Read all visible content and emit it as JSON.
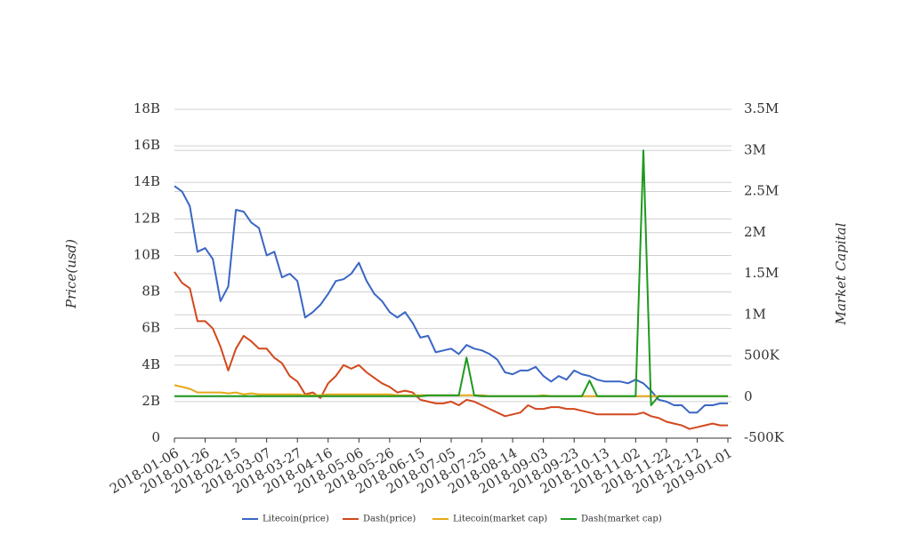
{
  "chart_data": {
    "type": "line",
    "y_label": "Price(usd)",
    "y2_label": "Market Capital",
    "x": [
      "2018-01-06",
      "2018-01-11",
      "2018-01-16",
      "2018-01-21",
      "2018-01-26",
      "2018-01-31",
      "2018-02-05",
      "2018-02-10",
      "2018-02-15",
      "2018-02-20",
      "2018-02-25",
      "2018-03-02",
      "2018-03-07",
      "2018-03-12",
      "2018-03-17",
      "2018-03-22",
      "2018-03-27",
      "2018-04-01",
      "2018-04-06",
      "2018-04-11",
      "2018-04-16",
      "2018-04-21",
      "2018-04-26",
      "2018-05-01",
      "2018-05-06",
      "2018-05-11",
      "2018-05-16",
      "2018-05-21",
      "2018-05-26",
      "2018-05-31",
      "2018-06-05",
      "2018-06-10",
      "2018-06-15",
      "2018-06-20",
      "2018-06-25",
      "2018-06-30",
      "2018-07-05",
      "2018-07-10",
      "2018-07-15",
      "2018-07-20",
      "2018-07-25",
      "2018-07-30",
      "2018-08-04",
      "2018-08-09",
      "2018-08-14",
      "2018-08-19",
      "2018-08-24",
      "2018-08-29",
      "2018-09-03",
      "2018-09-08",
      "2018-09-13",
      "2018-09-18",
      "2018-09-23",
      "2018-09-28",
      "2018-10-03",
      "2018-10-08",
      "2018-10-13",
      "2018-10-18",
      "2018-10-23",
      "2018-10-28",
      "2018-11-02",
      "2018-11-07",
      "2018-11-12",
      "2018-11-17",
      "2018-11-22",
      "2018-11-27",
      "2018-12-02",
      "2018-12-07",
      "2018-12-12",
      "2018-12-17",
      "2018-12-22",
      "2018-12-27",
      "2019-01-01"
    ],
    "xlim": [
      "2018-01-06",
      "2019-01-01"
    ],
    "xticks": [
      "2018-01-06",
      "2018-01-26",
      "2018-02-15",
      "2018-03-07",
      "2018-03-27",
      "2018-04-16",
      "2018-05-06",
      "2018-05-26",
      "2018-06-15",
      "2018-07-05",
      "2018-07-25",
      "2018-08-14",
      "2018-09-03",
      "2018-09-23",
      "2018-10-13",
      "2018-11-02",
      "2018-11-22",
      "2018-12-12",
      "2019-01-01"
    ],
    "ylim": [
      0,
      18000000000.0
    ],
    "yticks": [
      0,
      {
        "value": 2000000000.0,
        "label": "2B"
      },
      {
        "value": 4000000000.0,
        "label": "4B"
      },
      {
        "value": 6000000000.0,
        "label": "6B"
      },
      {
        "value": 8000000000.0,
        "label": "8B"
      },
      {
        "value": 10000000000.0,
        "label": "10B"
      },
      {
        "value": 12000000000.0,
        "label": "12B"
      },
      {
        "value": 14000000000.0,
        "label": "14B"
      },
      {
        "value": 16000000000.0,
        "label": "16B"
      },
      {
        "value": 18000000000.0,
        "label": "18B"
      }
    ],
    "y2lim": [
      -500000,
      3500000
    ],
    "y2ticks": [
      {
        "value": -500000,
        "label": "-500K"
      },
      0,
      {
        "value": 500000,
        "label": "500K"
      },
      {
        "value": 1000000,
        "label": "1M"
      },
      {
        "value": 1500000,
        "label": "1.5M"
      },
      {
        "value": 2000000,
        "label": "2M"
      },
      {
        "value": 2500000,
        "label": "2.5M"
      },
      {
        "value": 3000000,
        "label": "3M"
      },
      {
        "value": 3500000,
        "label": "3.5M"
      }
    ],
    "grid": true,
    "legend": "bottom",
    "series": [
      {
        "name": "Litecoin(price)",
        "color": "#3a66c4",
        "axis": "y",
        "values": [
          13800000000.0,
          13500000000.0,
          12700000000.0,
          10200000000.0,
          10400000000.0,
          9800000000.0,
          7500000000.0,
          8300000000.0,
          12500000000.0,
          12400000000.0,
          11800000000.0,
          11500000000.0,
          10000000000.0,
          10200000000.0,
          8800000000.0,
          9000000000.0,
          8600000000.0,
          6600000000.0,
          6900000000.0,
          7300000000.0,
          7900000000.0,
          8600000000.0,
          8700000000.0,
          9000000000.0,
          9600000000.0,
          8600000000.0,
          7900000000.0,
          7500000000.0,
          6900000000.0,
          6600000000.0,
          6900000000.0,
          6300000000.0,
          5500000000.0,
          5600000000.0,
          4700000000.0,
          4800000000.0,
          4900000000.0,
          4600000000.0,
          5100000000.0,
          4900000000.0,
          4800000000.0,
          4600000000.0,
          4300000000.0,
          3600000000.0,
          3500000000.0,
          3700000000.0,
          3700000000.0,
          3900000000.0,
          3400000000.0,
          3100000000.0,
          3400000000.0,
          3200000000.0,
          3700000000.0,
          3500000000.0,
          3400000000.0,
          3200000000.0,
          3100000000.0,
          3100000000.0,
          3100000000.0,
          3000000000.0,
          3200000000.0,
          3000000000.0,
          2600000000.0,
          2100000000.0,
          2000000000.0,
          1800000000.0,
          1800000000.0,
          1400000000.0,
          1400000000.0,
          1800000000.0,
          1800000000.0,
          1900000000.0,
          1900000000.0
        ]
      },
      {
        "name": "Dash(price)",
        "color": "#d2481c",
        "axis": "y",
        "values": [
          9100000000.0,
          8500000000.0,
          8200000000.0,
          6400000000.0,
          6400000000.0,
          6000000000.0,
          5000000000.0,
          3700000000.0,
          4900000000.0,
          5600000000.0,
          5300000000.0,
          4900000000.0,
          4900000000.0,
          4400000000.0,
          4100000000.0,
          3400000000.0,
          3100000000.0,
          2400000000.0,
          2500000000.0,
          2200000000.0,
          3000000000.0,
          3400000000.0,
          4000000000.0,
          3800000000.0,
          4000000000.0,
          3600000000.0,
          3300000000.0,
          3000000000.0,
          2800000000.0,
          2500000000.0,
          2600000000.0,
          2500000000.0,
          2100000000.0,
          2000000000.0,
          1900000000.0,
          1900000000.0,
          2000000000.0,
          1800000000.0,
          2100000000.0,
          2000000000.0,
          1800000000.0,
          1600000000.0,
          1400000000.0,
          1200000000.0,
          1300000000.0,
          1400000000.0,
          1800000000.0,
          1600000000.0,
          1600000000.0,
          1700000000.0,
          1700000000.0,
          1600000000.0,
          1600000000.0,
          1500000000.0,
          1400000000.0,
          1300000000.0,
          1300000000.0,
          1300000000.0,
          1300000000.0,
          1300000000.0,
          1300000000.0,
          1400000000.0,
          1200000000.0,
          1100000000.0,
          900000000.0,
          800000000.0,
          700000000.0,
          500000000.0,
          600000000.0,
          700000000.0,
          800000000.0,
          700000000.0,
          700000000.0
        ]
      },
      {
        "name": "Litecoin(market cap)",
        "color": "#e6a817",
        "axis": "y",
        "values": [
          2900000000.0,
          2800000000.0,
          2700000000.0,
          2500000000.0,
          2500000000.0,
          2500000000.0,
          2500000000.0,
          2450000000.0,
          2500000000.0,
          2400000000.0,
          2450000000.0,
          2400000000.0,
          2400000000.0,
          2400000000.0,
          2400000000.0,
          2400000000.0,
          2400000000.0,
          2350000000.0,
          2350000000.0,
          2350000000.0,
          2400000000.0,
          2400000000.0,
          2400000000.0,
          2400000000.0,
          2400000000.0,
          2400000000.0,
          2400000000.0,
          2400000000.0,
          2400000000.0,
          2350000000.0,
          2350000000.0,
          2350000000.0,
          2350000000.0,
          2350000000.0,
          2350000000.0,
          2350000000.0,
          2350000000.0,
          2350000000.0,
          2350000000.0,
          2350000000.0,
          2350000000.0,
          2300000000.0,
          2300000000.0,
          2300000000.0,
          2300000000.0,
          2300000000.0,
          2300000000.0,
          2300000000.0,
          2350000000.0,
          2300000000.0,
          2300000000.0,
          2300000000.0,
          2300000000.0,
          2300000000.0,
          2300000000.0,
          2300000000.0,
          2300000000.0,
          2300000000.0,
          2300000000.0,
          2300000000.0,
          2300000000.0,
          2300000000.0,
          2300000000.0,
          2300000000.0,
          2300000000.0,
          2300000000.0,
          2300000000.0,
          2300000000.0,
          2300000000.0,
          2300000000.0,
          2300000000.0,
          2300000000.0,
          2300000000.0
        ]
      },
      {
        "name": "Dash(market cap)",
        "color": "#1e9a1e",
        "axis": "y2",
        "values": [
          10000,
          10000,
          10000,
          10000,
          10000,
          10000,
          10000,
          10000,
          10000,
          10000,
          10000,
          10000,
          10000,
          10000,
          10000,
          10000,
          10000,
          10000,
          10000,
          10000,
          10000,
          10000,
          10000,
          10000,
          10000,
          10000,
          10000,
          10000,
          10000,
          10000,
          10000,
          10000,
          10000,
          20000,
          20000,
          20000,
          20000,
          20000,
          480000,
          20000,
          10000,
          10000,
          10000,
          10000,
          10000,
          10000,
          10000,
          10000,
          10000,
          10000,
          10000,
          10000,
          10000,
          10000,
          200000,
          10000,
          10000,
          10000,
          10000,
          10000,
          10000,
          3000000,
          -100000,
          10000,
          10000,
          10000,
          10000,
          10000,
          10000,
          10000,
          10000,
          10000,
          10000
        ]
      }
    ]
  }
}
